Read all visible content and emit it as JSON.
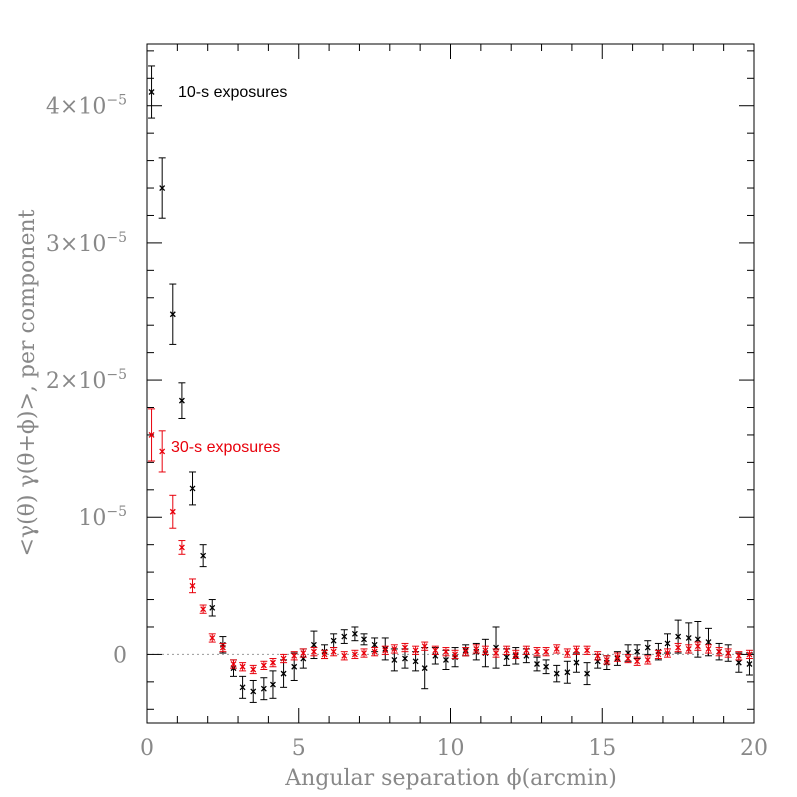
{
  "chart_data": {
    "type": "scatter",
    "title": "",
    "xlabel": "Angular separation ϕ(arcmin)",
    "ylabel": "<γ(θ)  γ(θ+ϕ)>, per component",
    "xlim": [
      0,
      20
    ],
    "ylim": [
      -5e-06,
      4.45e-05
    ],
    "x_ticks": [
      {
        "value": 0,
        "label": "0"
      },
      {
        "value": 5,
        "label": "5"
      },
      {
        "value": 10,
        "label": "10"
      },
      {
        "value": 15,
        "label": "15"
      },
      {
        "value": 20,
        "label": "20"
      }
    ],
    "y_ticks": [
      {
        "value": 0,
        "label": "0",
        "base": "0",
        "exp": ""
      },
      {
        "value": 1e-05,
        "label": "10⁻⁵",
        "base": "10",
        "exp": "−5"
      },
      {
        "value": 2e-05,
        "label": "2×10⁻⁵",
        "base": "2×10",
        "exp": "−5"
      },
      {
        "value": 3e-05,
        "label": "3×10⁻⁵",
        "base": "3×10",
        "exp": "−5"
      },
      {
        "value": 4e-05,
        "label": "4×10⁻⁵",
        "base": "4×10",
        "exp": "−5"
      }
    ],
    "zero_line": true,
    "annotations": [
      {
        "text": "10-s exposures",
        "color": "#000000"
      },
      {
        "text": "30-s exposures",
        "color": "#e8000b"
      }
    ],
    "series": [
      {
        "color": "#000000",
        "x": [
          0.15,
          0.5,
          0.85,
          1.15,
          1.5,
          1.85,
          2.15,
          2.5,
          2.85,
          3.15,
          3.5,
          3.85,
          4.15,
          4.5,
          4.85,
          5.15,
          5.5,
          5.85,
          6.15,
          6.5,
          6.85,
          7.15,
          7.5,
          7.85,
          8.15,
          8.5,
          8.85,
          9.15,
          9.5,
          9.85,
          10.15,
          10.5,
          10.85,
          11.15,
          11.5,
          11.85,
          12.15,
          12.5,
          12.85,
          13.15,
          13.5,
          13.85,
          14.15,
          14.5,
          14.85,
          15.15,
          15.5,
          15.85,
          16.15,
          16.5,
          16.85,
          17.15,
          17.5,
          17.85,
          18.15,
          18.5,
          18.85,
          19.15,
          19.5,
          19.85
        ],
        "y": [
          4.1e-05,
          3.4e-05,
          2.48e-05,
          1.85e-05,
          1.21e-05,
          7.2e-06,
          3.4e-06,
          7e-07,
          -1e-06,
          -2.4e-06,
          -2.7e-06,
          -2.5e-06,
          -2.2e-06,
          -1.4e-06,
          -9e-07,
          -3e-07,
          7e-07,
          2e-07,
          1e-06,
          1.3e-06,
          1.5e-06,
          1.1e-06,
          7e-07,
          4e-07,
          -4e-07,
          -3e-07,
          -5e-07,
          -1e-06,
          -1e-07,
          -4e-07,
          -2e-07,
          3e-07,
          2e-07,
          1e-07,
          5e-07,
          -2e-07,
          -1e-07,
          -1e-07,
          -7e-07,
          -9e-07,
          -1.4e-06,
          -1.3e-06,
          -6e-07,
          -1.4e-06,
          -5e-07,
          -6e-07,
          -3e-07,
          1e-07,
          2e-07,
          5e-07,
          2e-07,
          8e-07,
          1.3e-06,
          1.2e-06,
          1.1e-06,
          9e-07,
          2e-07,
          1e-07,
          -6e-07,
          -7e-07
        ],
        "err": [
          1.9e-06,
          2.2e-06,
          2.2e-06,
          1.3e-06,
          1.2e-06,
          8e-07,
          6e-07,
          6e-07,
          6e-07,
          8e-07,
          8e-07,
          8e-07,
          1e-06,
          1e-06,
          1e-06,
          7e-07,
          1e-06,
          5e-07,
          5e-07,
          5e-07,
          5e-07,
          4e-07,
          5e-07,
          8e-07,
          8e-07,
          7e-07,
          7e-07,
          1.5e-06,
          6e-07,
          7e-07,
          7e-07,
          4e-07,
          6e-07,
          1e-06,
          1.5e-06,
          6e-07,
          6e-07,
          5e-07,
          5e-07,
          5e-07,
          6e-07,
          8e-07,
          7e-07,
          8e-07,
          5e-07,
          5e-07,
          5e-07,
          6e-07,
          5e-07,
          5e-07,
          6e-07,
          7e-07,
          1.2e-06,
          1.1e-06,
          1.3e-06,
          1e-06,
          6e-07,
          6e-07,
          7e-07,
          8e-07
        ]
      },
      {
        "color": "#e8000b",
        "x": [
          0.15,
          0.5,
          0.85,
          1.15,
          1.5,
          1.85,
          2.15,
          2.5,
          2.85,
          3.15,
          3.5,
          3.85,
          4.15,
          4.5,
          4.85,
          5.15,
          5.5,
          5.85,
          6.15,
          6.5,
          6.85,
          7.15,
          7.5,
          7.85,
          8.15,
          8.5,
          8.85,
          9.15,
          9.5,
          9.85,
          10.15,
          10.5,
          10.85,
          11.15,
          11.5,
          11.85,
          12.15,
          12.5,
          12.85,
          13.15,
          13.5,
          13.85,
          14.15,
          14.5,
          14.85,
          15.15,
          15.5,
          15.85,
          16.15,
          16.5,
          16.85,
          17.15,
          17.5,
          17.85,
          18.15,
          18.5,
          18.85,
          19.15,
          19.5,
          19.85
        ],
        "y": [
          1.6e-05,
          1.48e-05,
          1.04e-05,
          7.8e-06,
          5e-06,
          3.3e-06,
          1.2e-06,
          5e-07,
          -7e-07,
          -9e-07,
          -1.1e-06,
          -8e-07,
          -6e-07,
          -3e-07,
          -1e-07,
          1e-07,
          2e-07,
          0.0,
          2e-07,
          -1e-07,
          0.0,
          1e-07,
          2e-07,
          3e-07,
          4e-07,
          5e-07,
          3e-07,
          6e-07,
          3e-07,
          2e-07,
          0.0,
          2e-07,
          4e-07,
          3e-07,
          1e-07,
          3e-07,
          0.0,
          3e-07,
          2e-07,
          2e-07,
          4e-07,
          1e-07,
          3e-07,
          3e-07,
          -1e-07,
          -4e-07,
          -2e-07,
          -3e-07,
          -5e-07,
          -4e-07,
          0.0,
          1e-07,
          5e-07,
          4e-07,
          6e-07,
          4e-07,
          2e-07,
          1e-07,
          -1e-07,
          0.0
        ],
        "err": [
          1.9e-06,
          1.5e-06,
          1.2e-06,
          5e-07,
          5e-07,
          3e-07,
          3e-07,
          3e-07,
          3e-07,
          3e-07,
          3e-07,
          3e-07,
          3e-07,
          3e-07,
          3e-07,
          3e-07,
          3e-07,
          3e-07,
          3e-07,
          3e-07,
          3e-07,
          3e-07,
          3e-07,
          3e-07,
          3e-07,
          3e-07,
          3e-07,
          3e-07,
          3e-07,
          3e-07,
          3e-07,
          3e-07,
          3e-07,
          3e-07,
          3e-07,
          3e-07,
          3e-07,
          3e-07,
          3e-07,
          3e-07,
          3e-07,
          3e-07,
          3e-07,
          3e-07,
          3e-07,
          3e-07,
          3e-07,
          3e-07,
          3e-07,
          3e-07,
          3e-07,
          3e-07,
          3e-07,
          3e-07,
          3e-07,
          3e-07,
          3e-07,
          3e-07,
          3e-07,
          3e-07
        ]
      }
    ]
  }
}
